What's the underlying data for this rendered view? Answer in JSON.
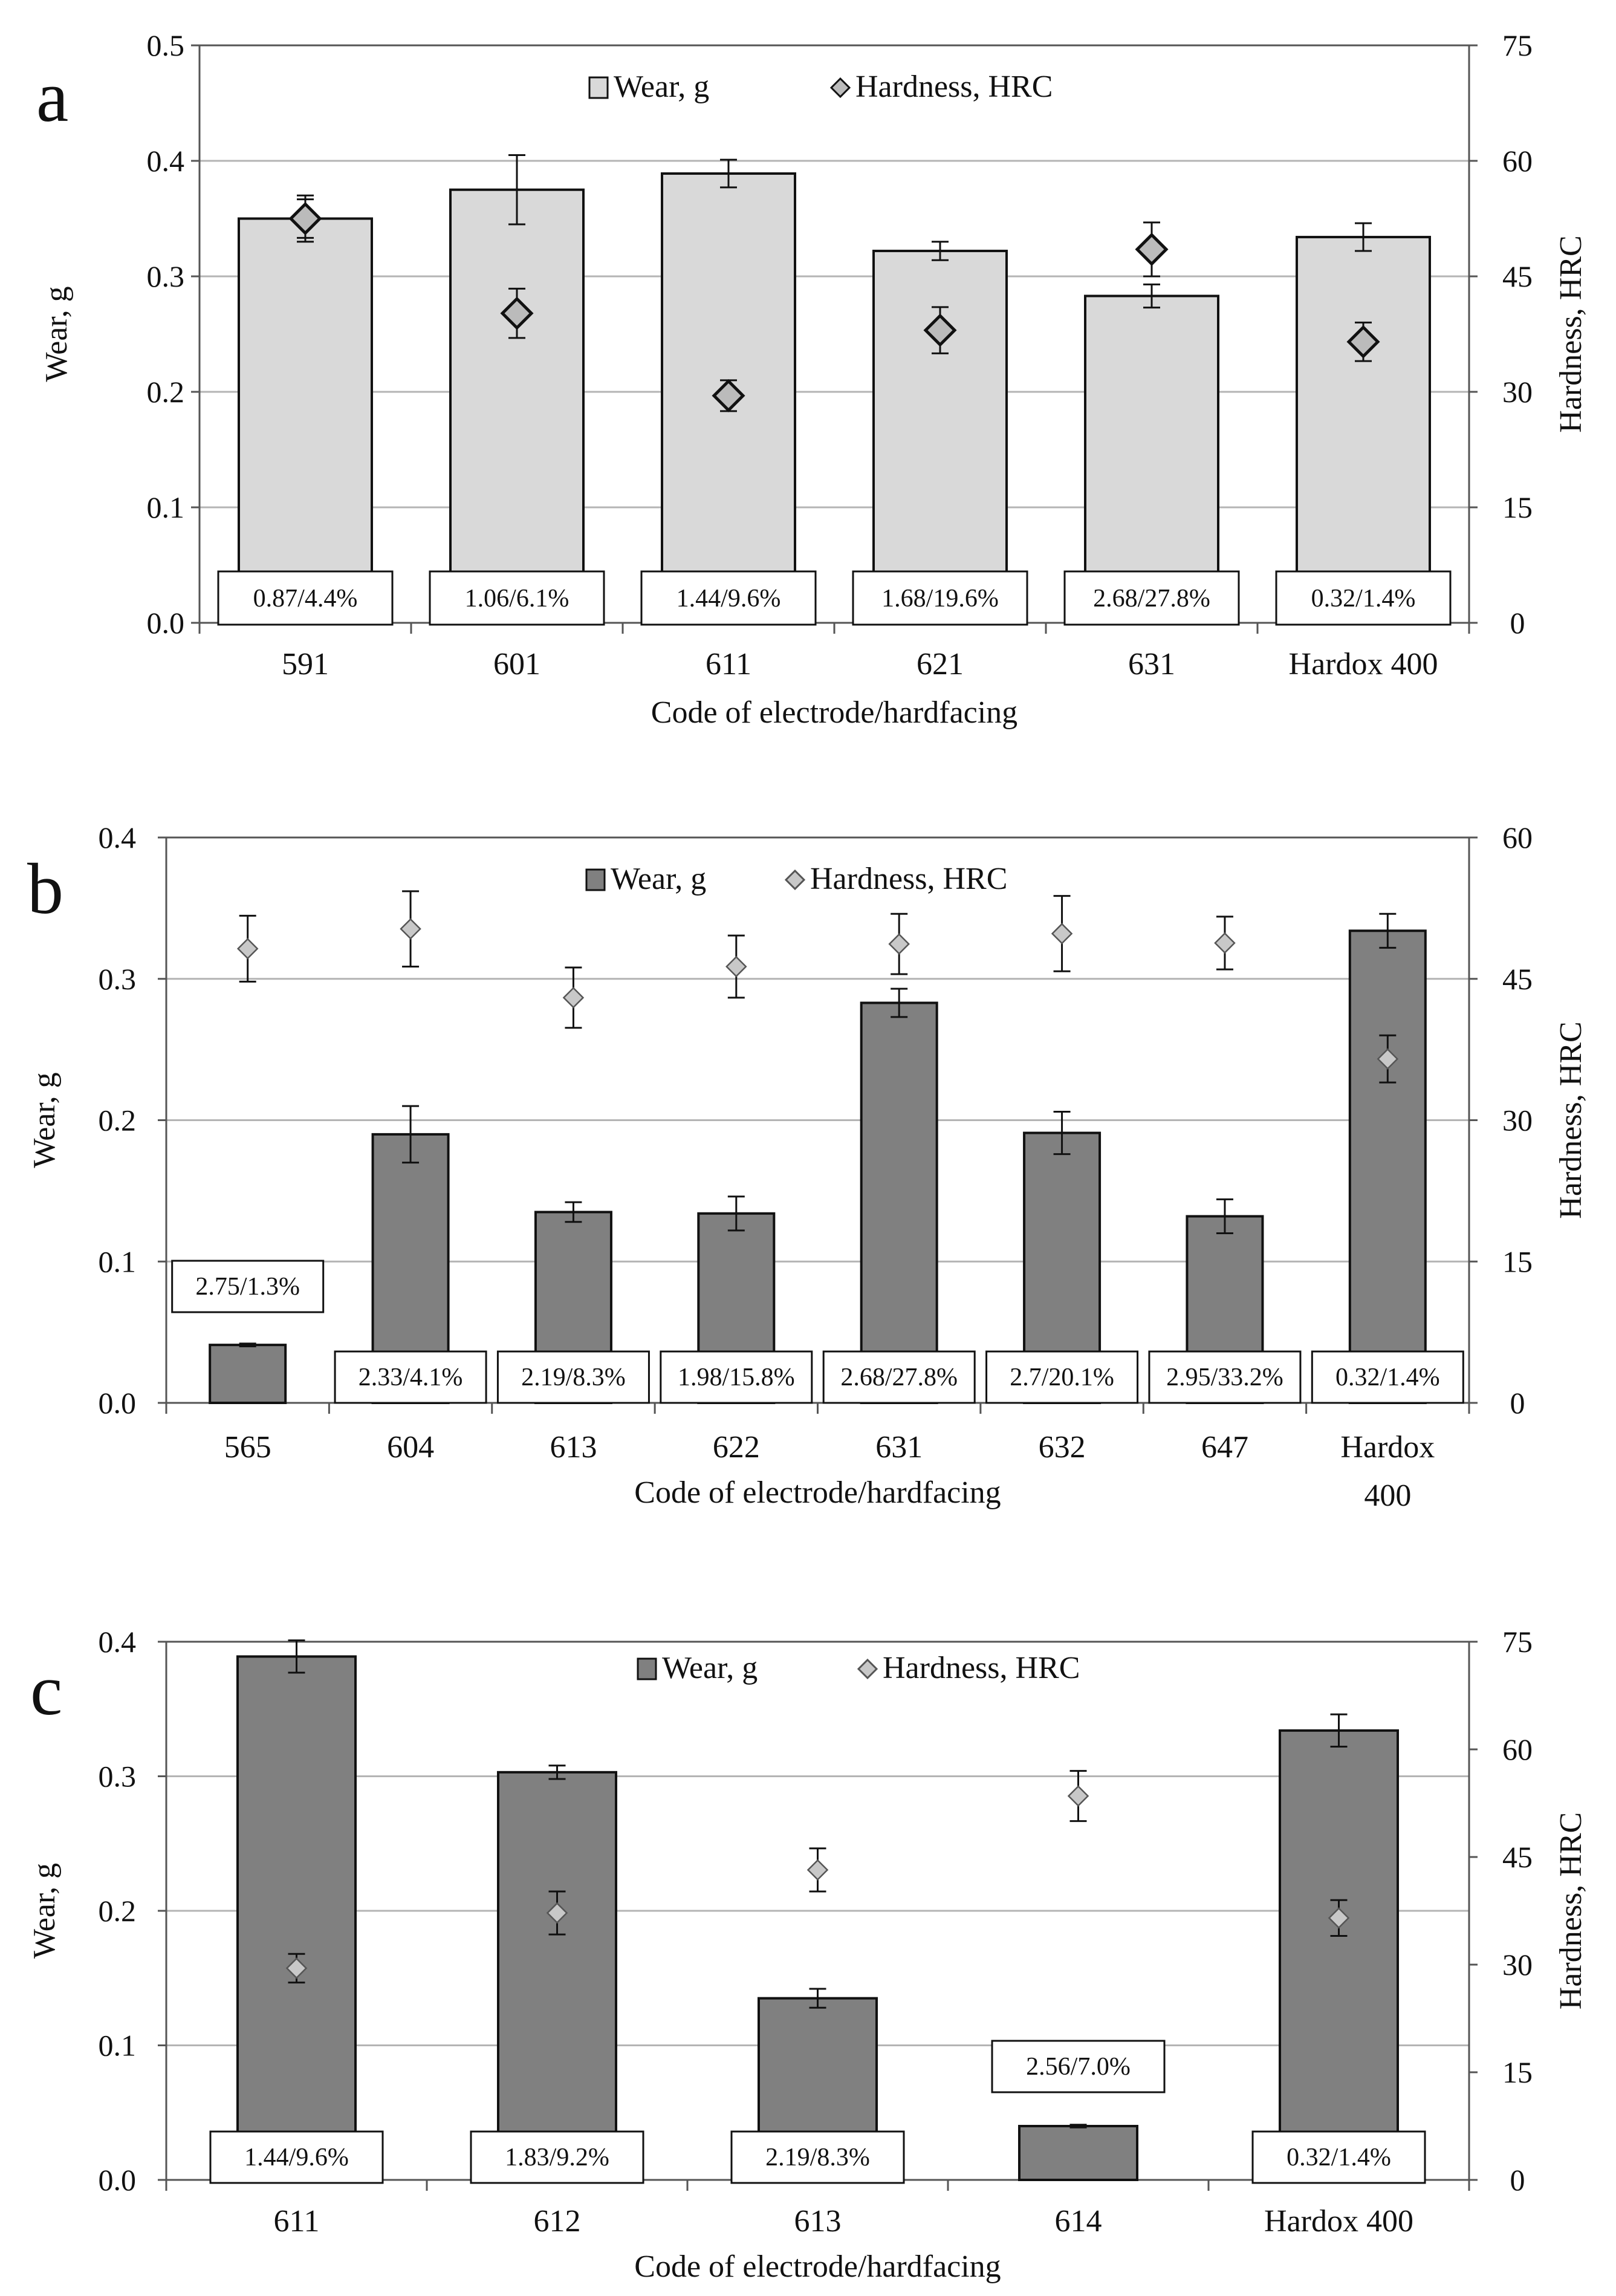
{
  "colors": {
    "wear_light": "#d9d9d9",
    "wear_dark": "#808080",
    "hard_light": "#c8c8c8",
    "grid": "#b4b4b4",
    "ink": "#111111"
  },
  "chart_data": [
    {
      "panel": "a",
      "type": "bar",
      "xlabel": "Code of electrode/hardfacing",
      "ylabel": "Wear, g",
      "y2label": "Hardness, HRC",
      "ylim": [
        0,
        0.5
      ],
      "y_ticks": [
        "0.0",
        "0.1",
        "0.2",
        "0.3",
        "0.4",
        "0.5"
      ],
      "y2lim": [
        0,
        75
      ],
      "y2_ticks": [
        "0",
        "15",
        "30",
        "45",
        "60",
        "75"
      ],
      "legend": {
        "wear": "Wear, g",
        "hardness": "Hardness, HRC"
      },
      "categories": [
        "591",
        "601",
        "611",
        "621",
        "631",
        "Hardox 400"
      ],
      "series": [
        {
          "name": "Wear, g",
          "type": "bar",
          "axis": "left",
          "fill": "light",
          "values": [
            0.35,
            0.375,
            0.389,
            0.322,
            0.283,
            0.334
          ],
          "errors": [
            0.02,
            0.03,
            0.012,
            0.008,
            0.01,
            0.012
          ]
        },
        {
          "name": "Hardness, HRC",
          "type": "scatter",
          "axis": "right",
          "marker": "diamond",
          "values": [
            52.5,
            40.2,
            29.5,
            38.0,
            48.5,
            36.5
          ],
          "errors": [
            2.5,
            3.2,
            2.0,
            3.0,
            3.5,
            2.5
          ]
        }
      ],
      "value_labels": [
        "0.87/4.4%",
        "1.06/6.1%",
        "1.44/9.6%",
        "1.68/19.6%",
        "2.68/27.8%",
        "0.32/1.4%"
      ]
    },
    {
      "panel": "b",
      "type": "bar",
      "xlabel": "Code of electrode/hardfacing",
      "ylabel": "Wear, g",
      "y2label": "Hardness, HRC",
      "ylim": [
        0,
        0.4
      ],
      "y_ticks": [
        "0.0",
        "0.1",
        "0.2",
        "0.3",
        "0.4"
      ],
      "y2lim": [
        0,
        60
      ],
      "y2_ticks": [
        "0",
        "15",
        "30",
        "45",
        "60"
      ],
      "legend": {
        "wear": "Wear, g",
        "hardness": "Hardness, HRC"
      },
      "categories": [
        "565",
        "604",
        "613",
        "622",
        "631",
        "632",
        "647",
        "Hardox 400"
      ],
      "series": [
        {
          "name": "Wear, g",
          "type": "bar",
          "axis": "left",
          "fill": "dark",
          "values": [
            0.041,
            0.19,
            0.135,
            0.134,
            0.283,
            0.191,
            0.132,
            0.334
          ],
          "errors": [
            0.001,
            0.02,
            0.007,
            0.012,
            0.01,
            0.015,
            0.012,
            0.012
          ]
        },
        {
          "name": "Hardness, HRC",
          "type": "scatter",
          "axis": "right",
          "marker": "diamond",
          "values": [
            48.2,
            50.3,
            43.0,
            46.3,
            48.7,
            49.8,
            48.8,
            36.5
          ],
          "errors": [
            3.5,
            4.0,
            3.2,
            3.3,
            3.2,
            4.0,
            2.8,
            2.5
          ]
        }
      ],
      "value_labels": [
        "2.75/1.3%",
        "2.33/4.1%",
        "2.19/8.3%",
        "1.98/15.8%",
        "2.68/27.8%",
        "2.7/20.1%",
        "2.95/33.2%",
        "0.32/1.4%"
      ]
    },
    {
      "panel": "c",
      "type": "bar",
      "xlabel": "Code of electrode/hardfacing",
      "ylabel": "Wear, g",
      "y2label": "Hardness, HRC",
      "ylim": [
        0,
        0.4
      ],
      "y_ticks": [
        "0.0",
        "0.1",
        "0.2",
        "0.3",
        "0.4"
      ],
      "y2lim": [
        0,
        75
      ],
      "y2_ticks": [
        "0",
        "15",
        "30",
        "45",
        "60",
        "75"
      ],
      "legend": {
        "wear": "Wear, g",
        "hardness": "Hardness, HRC"
      },
      "categories": [
        "611",
        "612",
        "613",
        "614",
        "Hardox 400"
      ],
      "series": [
        {
          "name": "Wear, g",
          "type": "bar",
          "axis": "left",
          "fill": "dark",
          "values": [
            0.389,
            0.303,
            0.135,
            0.04,
            0.334
          ],
          "errors": [
            0.012,
            0.005,
            0.007,
            0.001,
            0.012
          ]
        },
        {
          "name": "Hardness, HRC",
          "type": "scatter",
          "axis": "right",
          "marker": "diamond",
          "values": [
            29.5,
            37.2,
            43.2,
            53.5,
            36.5
          ],
          "errors": [
            2.0,
            3.0,
            3.0,
            3.5,
            2.5
          ]
        }
      ],
      "value_labels": [
        "1.44/9.6%",
        "1.83/9.2%",
        "2.19/8.3%",
        "2.56/7.0%",
        "0.32/1.4%"
      ]
    }
  ]
}
